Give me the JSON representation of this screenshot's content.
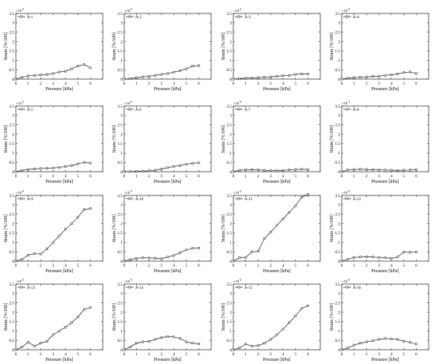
{
  "figure": {
    "axis_exponent_label": "×10",
    "axis_exponent_power": "-3"
  },
  "chart_data": [
    {
      "type": "line",
      "legend": "A-1",
      "xlabel": "Pressure [kPa]",
      "ylabel": "Strain [%/100]",
      "xlim": [
        0,
        7
      ],
      "ylim": [
        0,
        3.5
      ],
      "xticks": [
        0,
        1,
        2,
        3,
        4,
        5,
        6
      ],
      "yticks": [
        0,
        0.5,
        1,
        1.5,
        2,
        2.5,
        3,
        3.5
      ],
      "x": [
        0,
        0.5,
        1,
        1.5,
        2,
        2.5,
        3,
        3.5,
        4,
        4.5,
        5,
        5.5,
        6
      ],
      "y": [
        0,
        0.1,
        0.17,
        0.2,
        0.22,
        0.25,
        0.3,
        0.38,
        0.42,
        0.55,
        0.7,
        0.78,
        0.6
      ]
    },
    {
      "type": "line",
      "legend": "A-2",
      "xlabel": "Pressure [kPa]",
      "ylabel": "Strain [%/100]",
      "xlim": [
        0,
        7
      ],
      "ylim": [
        0,
        3.5
      ],
      "xticks": [
        0,
        1,
        2,
        3,
        4,
        5,
        6
      ],
      "yticks": [
        0,
        0.5,
        1,
        1.5,
        2,
        2.5,
        3,
        3.5
      ],
      "x": [
        0,
        0.5,
        1,
        1.5,
        2,
        2.5,
        3,
        3.5,
        4,
        4.5,
        5,
        5.5,
        6
      ],
      "y": [
        0,
        0.03,
        0.08,
        0.12,
        0.15,
        0.2,
        0.25,
        0.3,
        0.37,
        0.45,
        0.55,
        0.7,
        0.72
      ]
    },
    {
      "type": "line",
      "legend": "A-3",
      "xlabel": "Pressure [kPa]",
      "ylabel": "Strain [%/100]",
      "xlim": [
        0,
        7
      ],
      "ylim": [
        0,
        3.5
      ],
      "xticks": [
        0,
        1,
        2,
        3,
        4,
        5,
        6
      ],
      "yticks": [
        0,
        0.5,
        1,
        1.5,
        2,
        2.5,
        3,
        3.5
      ],
      "x": [
        0,
        0.5,
        1,
        1.5,
        2,
        2.5,
        3,
        3.5,
        4,
        4.5,
        5,
        5.5,
        6
      ],
      "y": [
        0,
        0.03,
        0.05,
        0.06,
        0.08,
        0.1,
        0.12,
        0.15,
        0.18,
        0.2,
        0.25,
        0.28,
        0.27
      ]
    },
    {
      "type": "line",
      "legend": "A-4",
      "xlabel": "Pressure [kPa]",
      "ylabel": "Strain [%/100]",
      "xlim": [
        0,
        7
      ],
      "ylim": [
        0,
        3.5
      ],
      "xticks": [
        0,
        1,
        2,
        3,
        4,
        5,
        6
      ],
      "yticks": [
        0,
        0.5,
        1,
        1.5,
        2,
        2.5,
        3,
        3.5
      ],
      "x": [
        0,
        0.5,
        1,
        1.5,
        2,
        2.5,
        3,
        3.5,
        4,
        4.5,
        5,
        5.5,
        6
      ],
      "y": [
        0,
        0.05,
        0.08,
        0.1,
        0.12,
        0.14,
        0.16,
        0.2,
        0.23,
        0.28,
        0.35,
        0.38,
        0.3
      ]
    },
    {
      "type": "line",
      "legend": "A-5",
      "xlabel": "Pressure [kPa]",
      "ylabel": "Strain [%/100]",
      "xlim": [
        0,
        7
      ],
      "ylim": [
        0,
        3.5
      ],
      "xticks": [
        0,
        1,
        2,
        3,
        4,
        5,
        6
      ],
      "yticks": [
        0,
        0.5,
        1,
        1.5,
        2,
        2.5,
        3,
        3.5
      ],
      "x": [
        0,
        0.5,
        1,
        1.5,
        2,
        2.5,
        3,
        3.5,
        4,
        4.5,
        5,
        5.5,
        6
      ],
      "y": [
        0,
        0.07,
        0.12,
        0.15,
        0.17,
        0.18,
        0.2,
        0.23,
        0.28,
        0.33,
        0.42,
        0.5,
        0.46
      ]
    },
    {
      "type": "line",
      "legend": "A-6",
      "xlabel": "Pressure [kPa]",
      "ylabel": "Strain [%/100]",
      "xlim": [
        0,
        7
      ],
      "ylim": [
        0,
        3.5
      ],
      "xticks": [
        0,
        1,
        2,
        3,
        4,
        5,
        6
      ],
      "yticks": [
        0,
        0.5,
        1,
        1.5,
        2,
        2.5,
        3,
        3.5
      ],
      "x": [
        0,
        0.5,
        1,
        1.5,
        2,
        2.5,
        3,
        3.5,
        4,
        4.5,
        5,
        5.5,
        6
      ],
      "y": [
        0,
        0.01,
        0.02,
        0.03,
        0.05,
        0.08,
        0.15,
        0.22,
        0.28,
        0.33,
        0.4,
        0.45,
        0.47
      ]
    },
    {
      "type": "line",
      "legend": "A-7",
      "xlabel": "Pressure [kPa]",
      "ylabel": "Strain [%/100]",
      "xlim": [
        0,
        7
      ],
      "ylim": [
        0,
        3.5
      ],
      "xticks": [
        0,
        1,
        2,
        3,
        4,
        5,
        6
      ],
      "yticks": [
        0,
        0.5,
        1,
        1.5,
        2,
        2.5,
        3,
        3.5
      ],
      "x": [
        0,
        0.5,
        1,
        1.5,
        2,
        2.5,
        3,
        3.5,
        4,
        4.5,
        5,
        5.5,
        6
      ],
      "y": [
        0,
        0.08,
        0.1,
        0.11,
        0.1,
        0.08,
        0.06,
        0.05,
        0.07,
        0.1,
        0.12,
        0.13,
        0.12
      ]
    },
    {
      "type": "line",
      "legend": "A-8",
      "xlabel": "Pressure [kPa]",
      "ylabel": "Strain [%/100]",
      "xlim": [
        0,
        7
      ],
      "ylim": [
        0,
        3.5
      ],
      "xticks": [
        0,
        1,
        2,
        3,
        4,
        5,
        6
      ],
      "yticks": [
        0,
        0.5,
        1,
        1.5,
        2,
        2.5,
        3,
        3.5
      ],
      "x": [
        0,
        0.5,
        1,
        1.5,
        2,
        2.5,
        3,
        3.5,
        4,
        4.5,
        5,
        5.5,
        6
      ],
      "y": [
        0,
        0.1,
        0.12,
        0.13,
        0.12,
        0.11,
        0.1,
        0.09,
        0.08,
        0.07,
        0.08,
        0.09,
        0.12
      ]
    },
    {
      "type": "line",
      "legend": "A-9",
      "xlabel": "Pressure [kPa]",
      "ylabel": "Strain [%/100]",
      "xlim": [
        0,
        7
      ],
      "ylim": [
        0,
        3.5
      ],
      "xticks": [
        0,
        1,
        2,
        3,
        4,
        5,
        6
      ],
      "yticks": [
        0,
        0.5,
        1,
        1.5,
        2,
        2.5,
        3,
        3.5
      ],
      "x": [
        0,
        0.5,
        1,
        1.5,
        2,
        2.5,
        3,
        3.5,
        4,
        4.5,
        5,
        5.5,
        6
      ],
      "y": [
        0,
        0.1,
        0.32,
        0.4,
        0.38,
        0.65,
        1.0,
        1.35,
        1.7,
        2.0,
        2.35,
        2.75,
        2.8
      ]
    },
    {
      "type": "line",
      "legend": "A-10",
      "xlabel": "Pressure [kPa]",
      "ylabel": "Strain [%/100]",
      "xlim": [
        0,
        7
      ],
      "ylim": [
        0,
        3.5
      ],
      "xticks": [
        0,
        1,
        2,
        3,
        4,
        5,
        6
      ],
      "yticks": [
        0,
        0.5,
        1,
        1.5,
        2,
        2.5,
        3,
        3.5
      ],
      "x": [
        0,
        0.5,
        1,
        1.5,
        2,
        2.5,
        3,
        3.5,
        4,
        4.5,
        5,
        5.5,
        6
      ],
      "y": [
        0,
        0.08,
        0.15,
        0.18,
        0.17,
        0.16,
        0.13,
        0.22,
        0.3,
        0.45,
        0.6,
        0.68,
        0.7
      ]
    },
    {
      "type": "line",
      "legend": "A-11",
      "xlabel": "Pressure [kPa]",
      "ylabel": "Strain [%/100]",
      "xlim": [
        0,
        7
      ],
      "ylim": [
        0,
        3.5
      ],
      "xticks": [
        0,
        1,
        2,
        3,
        4,
        5,
        6
      ],
      "yticks": [
        0,
        0.5,
        1,
        1.5,
        2,
        2.5,
        3,
        3.5
      ],
      "x": [
        0,
        0.5,
        1,
        1.5,
        2,
        2.5,
        3,
        3.5,
        4,
        4.5,
        5,
        5.5,
        6
      ],
      "y": [
        0,
        0.18,
        0.2,
        0.5,
        0.52,
        1.2,
        1.55,
        1.9,
        2.25,
        2.6,
        2.95,
        3.4,
        3.55
      ]
    },
    {
      "type": "line",
      "legend": "A-12",
      "xlabel": "Pressure [kPa]",
      "ylabel": "Strain [%/100]",
      "xlim": [
        0,
        7
      ],
      "ylim": [
        0,
        3.5
      ],
      "xticks": [
        0,
        1,
        2,
        3,
        4,
        5,
        6
      ],
      "yticks": [
        0,
        0.5,
        1,
        1.5,
        2,
        2.5,
        3,
        3.5
      ],
      "x": [
        0,
        0.5,
        1,
        1.5,
        2,
        2.5,
        3,
        3.5,
        4,
        4.5,
        5,
        5.5,
        6
      ],
      "y": [
        0,
        0.1,
        0.2,
        0.22,
        0.23,
        0.22,
        0.2,
        0.18,
        0.15,
        0.22,
        0.48,
        0.47,
        0.48
      ]
    },
    {
      "type": "line",
      "legend": "A-13",
      "xlabel": "Pressure [kPa]",
      "ylabel": "Strain [%/100]",
      "xlim": [
        0,
        7
      ],
      "ylim": [
        0,
        3.5
      ],
      "xticks": [
        0,
        1,
        2,
        3,
        4,
        5,
        6
      ],
      "yticks": [
        0,
        0.5,
        1,
        1.5,
        2,
        2.5,
        3,
        3.5
      ],
      "x": [
        0,
        0.5,
        1,
        1.5,
        2,
        2.5,
        3,
        3.5,
        4,
        4.5,
        5,
        5.5,
        6
      ],
      "y": [
        0,
        0.15,
        0.4,
        0.2,
        0.35,
        0.45,
        0.8,
        1.0,
        1.2,
        1.45,
        1.75,
        2.15,
        2.25
      ]
    },
    {
      "type": "line",
      "legend": "A-14",
      "xlabel": "Pressure [kPa]",
      "ylabel": "Strain [%/100]",
      "xlim": [
        0,
        7
      ],
      "ylim": [
        0,
        3.5
      ],
      "xticks": [
        0,
        1,
        2,
        3,
        4,
        5,
        6
      ],
      "yticks": [
        0,
        0.5,
        1,
        1.5,
        2,
        2.5,
        3,
        3.5
      ],
      "x": [
        0,
        0.5,
        1,
        1.5,
        2,
        2.5,
        3,
        3.5,
        4,
        4.5,
        5,
        5.5,
        6
      ],
      "y": [
        0,
        0.15,
        0.35,
        0.42,
        0.45,
        0.55,
        0.65,
        0.7,
        0.68,
        0.6,
        0.42,
        0.35,
        0.32
      ]
    },
    {
      "type": "line",
      "legend": "A-15",
      "xlabel": "Pressure [kPa]",
      "ylabel": "Strain [%/100]",
      "xlim": [
        0,
        7
      ],
      "ylim": [
        0,
        3.5
      ],
      "xticks": [
        0,
        1,
        2,
        3,
        4,
        5,
        6
      ],
      "yticks": [
        0,
        0.5,
        1,
        1.5,
        2,
        2.5,
        3,
        3.5
      ],
      "x": [
        0,
        0.5,
        1,
        1.5,
        2,
        2.5,
        3,
        3.5,
        4,
        4.5,
        5,
        5.5,
        6
      ],
      "y": [
        0,
        0.1,
        0.3,
        0.2,
        0.22,
        0.35,
        0.55,
        0.8,
        1.1,
        1.45,
        1.8,
        2.2,
        2.35
      ]
    },
    {
      "type": "line",
      "legend": "A-16",
      "xlabel": "Pressure [kPa]",
      "ylabel": "Strain [%/100]",
      "xlim": [
        0,
        7
      ],
      "ylim": [
        0,
        3.5
      ],
      "xticks": [
        0,
        1,
        2,
        3,
        4,
        5,
        6
      ],
      "yticks": [
        0,
        0.5,
        1,
        1.5,
        2,
        2.5,
        3,
        3.5
      ],
      "x": [
        0,
        0.5,
        1,
        1.5,
        2,
        2.5,
        3,
        3.5,
        4,
        4.5,
        5,
        5.5,
        6
      ],
      "y": [
        0,
        0.1,
        0.25,
        0.35,
        0.42,
        0.48,
        0.55,
        0.6,
        0.58,
        0.55,
        0.45,
        0.4,
        0.3
      ]
    }
  ]
}
